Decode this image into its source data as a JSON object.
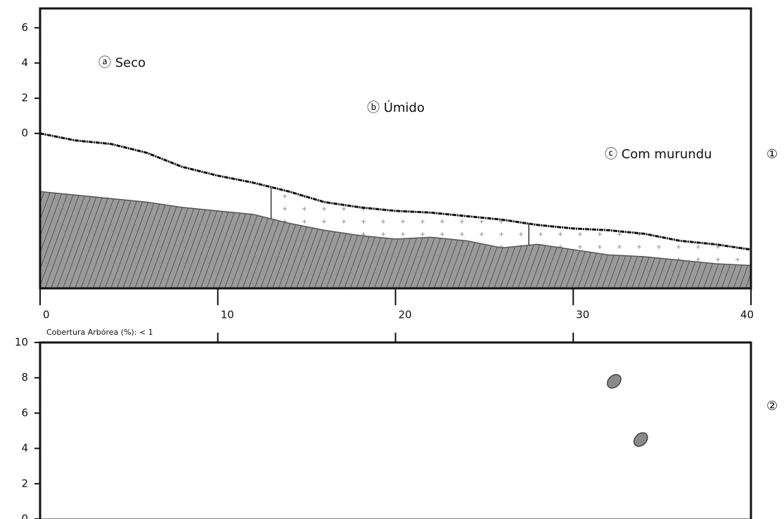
{
  "chart_data": [
    {
      "type": "profile",
      "x": [
        0,
        2,
        4,
        6,
        8,
        10,
        12,
        14,
        16,
        18,
        20,
        22,
        24,
        26,
        28,
        30,
        32,
        34,
        36,
        38,
        40
      ],
      "series": [
        {
          "color": "#111111",
          "values": [
            0,
            -0.4,
            -0.6,
            -1.1,
            -1.9,
            -2.4,
            -2.8,
            -3.3,
            -3.9,
            -4.2,
            -4.4,
            -4.5,
            -4.7,
            -4.9,
            -5.2,
            -5.4,
            -5.5,
            -5.7,
            -6.1,
            -6.3,
            -6.6
          ]
        },
        {
          "color": "#555555",
          "values": [
            -3.3,
            -3.5,
            -3.7,
            -3.9,
            -4.2,
            -4.4,
            -4.6,
            -5.1,
            -5.5,
            -5.8,
            -6.0,
            -5.9,
            -6.1,
            -6.5,
            -6.3,
            -6.6,
            -6.9,
            -7.0,
            -7.2,
            -7.4,
            -7.5
          ]
        }
      ],
      "zones": [
        13,
        27.5
      ],
      "xlim": [
        0,
        40
      ],
      "xticks": [
        0,
        10,
        20,
        30,
        40
      ],
      "ylim": [
        -8.8,
        7.1
      ],
      "yticks": [
        0,
        2,
        4,
        6
      ],
      "annotations": [
        "ⓐ Seco",
        "ⓑ Úmido",
        "ⓒ Com murundu"
      ],
      "panel_label": "①"
    },
    {
      "type": "scatter",
      "title": "Cobertura Arbórea (%): < 1",
      "x": [
        32.3,
        33.8
      ],
      "values": [
        7.8,
        4.5
      ],
      "color": "#8a8a8a",
      "xlim": [
        0,
        40
      ],
      "ylim": [
        0,
        10
      ],
      "yticks": [
        0,
        2,
        4,
        6,
        8,
        10
      ],
      "panel_label": "②"
    }
  ]
}
